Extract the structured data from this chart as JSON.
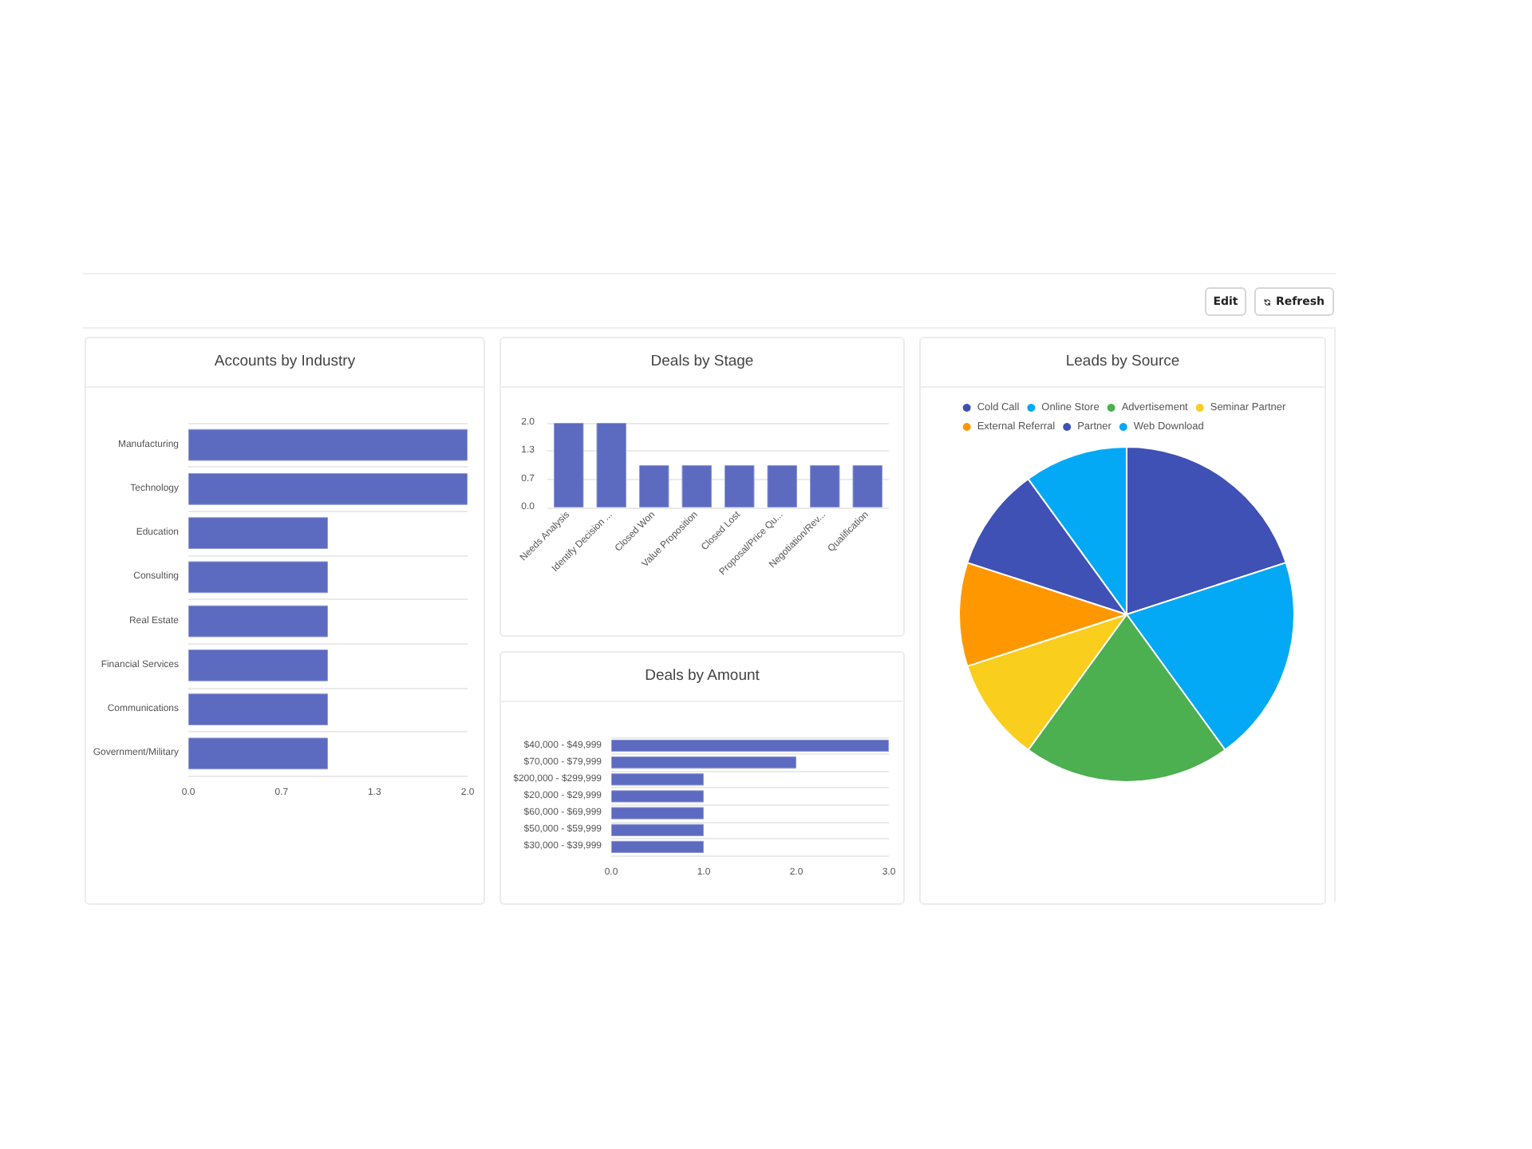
{
  "chart_data": [
    {
      "type": "other",
      "annotations": [
        "Edit",
        "Refresh"
      ]
    },
    {
      "type": "bar",
      "title": "Accounts by Industry",
      "orientation": "horizontal",
      "categories": [
        "Manufacturing",
        "Technology",
        "Education",
        "Consulting",
        "Real Estate",
        "Financial Services",
        "Communications",
        "Government/Military"
      ],
      "values": [
        2,
        2,
        1,
        1,
        1,
        1,
        1,
        1
      ],
      "color": "#5c6bc0",
      "xlim": [
        0,
        2
      ],
      "xticks": [
        {
          "value": 0,
          "label": "0.0"
        },
        {
          "value": 0.667,
          "label": "0.7"
        },
        {
          "value": 1.333,
          "label": "1.3"
        },
        {
          "value": 2,
          "label": "2.0"
        }
      ],
      "grid": "y"
    },
    {
      "type": "bar",
      "title": "Deals by Stage",
      "categories": [
        "Needs Analysis",
        "Identify Decision ...",
        "Closed Won",
        "Value Proposition",
        "Closed Lost",
        "Proposal/Price Qu...",
        "Negotiation/Rev...",
        "Qualification"
      ],
      "values": [
        2,
        2,
        1,
        1,
        1,
        1,
        1,
        1
      ],
      "color": "#5c6bc0",
      "ylim": [
        0,
        2
      ],
      "yticks": [
        {
          "value": 0,
          "label": "0.0"
        },
        {
          "value": 0.667,
          "label": "0.7"
        },
        {
          "value": 1.333,
          "label": "1.3"
        },
        {
          "value": 2,
          "label": "2.0"
        }
      ],
      "grid": "y"
    },
    {
      "type": "pie",
      "title": "Leads by Source",
      "categories": [
        "Cold Call",
        "Online Store",
        "Advertisement",
        "Seminar Partner",
        "External Referral",
        "Partner",
        "Web Download"
      ],
      "values": [
        20,
        20,
        20,
        10,
        10,
        10,
        10
      ],
      "colors": [
        "#3f51b5",
        "#03a9f4",
        "#4caf50",
        "#f9ce1d",
        "#ff9800",
        "#3f51b5",
        "#03a9f4"
      ],
      "legend": "top"
    },
    {
      "type": "bar",
      "title": "Deals by Amount",
      "orientation": "horizontal",
      "categories": [
        "$40,000 - $49,999",
        "$70,000 - $79,999",
        "$200,000 - $299,999",
        "$20,000 - $29,999",
        "$60,000 - $69,999",
        "$50,000 - $59,999",
        "$30,000 - $39,999"
      ],
      "values": [
        3,
        2,
        1,
        1,
        1,
        1,
        1
      ],
      "color": "#5c6bc0",
      "xlim": [
        0,
        3
      ],
      "xticks": [
        {
          "value": 0,
          "label": "0.0"
        },
        {
          "value": 1,
          "label": "1.0"
        },
        {
          "value": 2,
          "label": "2.0"
        },
        {
          "value": 3,
          "label": "3.0"
        }
      ],
      "grid": "y"
    }
  ]
}
